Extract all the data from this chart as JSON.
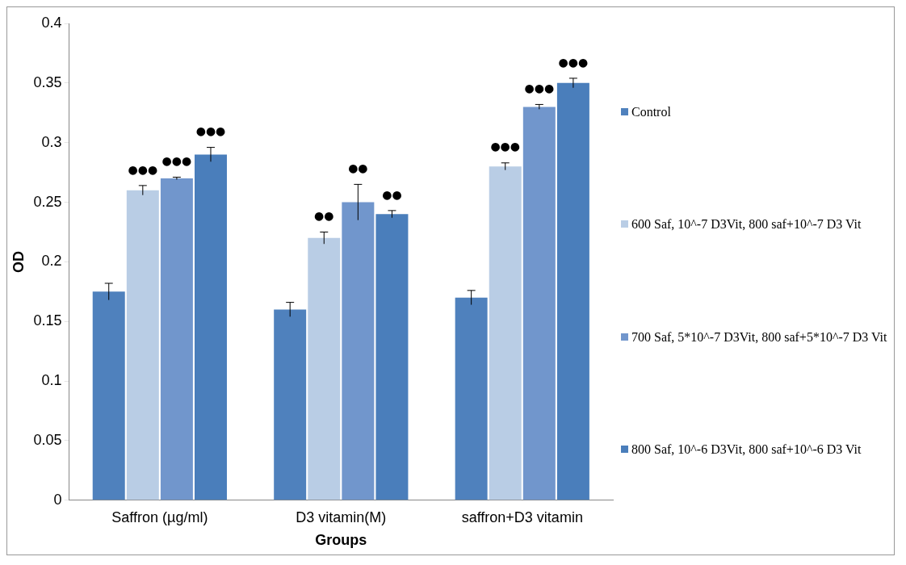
{
  "chart_data": {
    "type": "bar",
    "xlabel": "Groups",
    "ylabel": "OD",
    "categories": [
      "Saffron (µg/ml)",
      "D3 vitamin(M)",
      "saffron+D3 vitamin"
    ],
    "series": [
      {
        "name": "Control",
        "color": "#4f81bd",
        "values": [
          0.175,
          0.16,
          0.17
        ],
        "errors": [
          0.007,
          0.006,
          0.006
        ]
      },
      {
        "name": "600 Saf, 10^-7 D3Vit,  800 saf+10^-7 D3 Vit",
        "color": "#b9cde5",
        "values": [
          0.26,
          0.22,
          0.28
        ],
        "errors": [
          0.004,
          0.005,
          0.003
        ],
        "value_labels": [
          "●●●",
          "●●",
          "●●●"
        ]
      },
      {
        "name": "700 Saf, 5*10^-7 D3Vit,  800 saf+5*10^-7 D3 Vit",
        "color": "#7196cc",
        "values": [
          0.27,
          0.25,
          0.33
        ],
        "errors": [
          0.001,
          0.015,
          0.002
        ],
        "value_labels": [
          "●●●",
          "●●",
          "●●●"
        ]
      },
      {
        "name": "800 Saf, 10^-6 D3Vit,  800 saf+10^-6 D3 Vit",
        "color": "#4a7ebb",
        "values": [
          0.29,
          0.24,
          0.35
        ],
        "errors": [
          0.006,
          0.003,
          0.004
        ],
        "value_labels": [
          "●●●",
          "●●",
          "●●●"
        ]
      }
    ],
    "ylim": [
      0,
      0.4
    ],
    "yticks": [
      0,
      0.05,
      0.1,
      0.15,
      0.2,
      0.25,
      0.3,
      0.35,
      0.4
    ],
    "grid": false,
    "legend": "right"
  }
}
